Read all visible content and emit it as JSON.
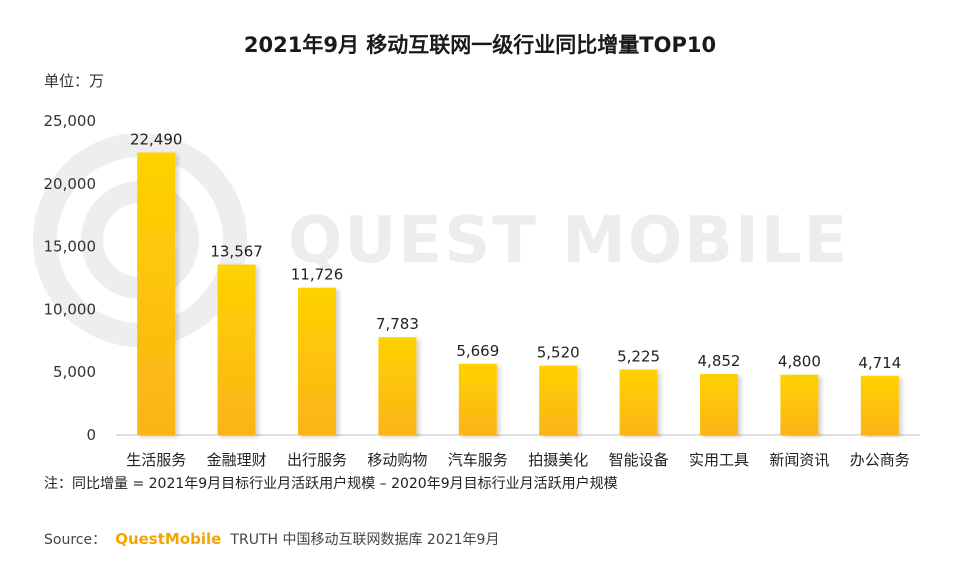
{
  "chart_data": {
    "type": "bar",
    "title": "2021年9月 移动互联网一级行业同比增量TOP10",
    "unit_label": "单位：万",
    "categories": [
      "生活服务",
      "金融理财",
      "出行服务",
      "移动购物",
      "汽车服务",
      "拍摄美化",
      "智能设备",
      "实用工具",
      "新闻资讯",
      "办公商务"
    ],
    "values": [
      22490,
      13567,
      11726,
      7783,
      5669,
      5520,
      5225,
      4852,
      4800,
      4714
    ],
    "value_labels": [
      "22,490",
      "13,567",
      "11,726",
      "7,783",
      "5,669",
      "5,520",
      "5,225",
      "4,852",
      "4,800",
      "4,714"
    ],
    "ylim": [
      0,
      25000
    ],
    "yticks": [
      0,
      5000,
      10000,
      15000,
      20000,
      25000
    ],
    "ytick_labels": [
      "0",
      "5,000",
      "10,000",
      "15,000",
      "20,000",
      "25,000"
    ],
    "bar_color_top": "#ffd200",
    "bar_color_bottom": "#fbb418",
    "grid": false
  },
  "footer": {
    "note": "注：同比增量 = 2021年9月目标行业月活跃用户规模 – 2020年9月目标行业月活跃用户规模",
    "source_prefix": "Source：",
    "source_brand": "QuestMobile",
    "source_rest": "TRUTH 中国移动互联网数据库 2021年9月"
  },
  "watermark": {
    "text": "QUEST MOBILE"
  }
}
